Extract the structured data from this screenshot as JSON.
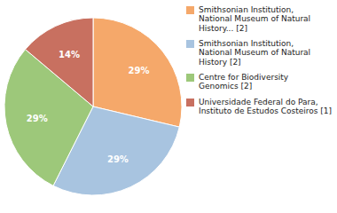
{
  "chart_data": {
    "type": "pie",
    "categories": [
      "Smithsonian Institution,\nNational Museum of Natural\nHistory... [2]",
      "Smithsonian Institution,\nNational Museum of Natural\nHistory [2]",
      "Centre for Biodiversity\nGenomics [2]",
      "Universidade Federal do Para,\nInstituto de Estudos Costeiros [1]"
    ],
    "values": [
      29,
      29,
      29,
      14
    ],
    "value_labels": [
      "29%",
      "29%",
      "29%",
      "14%"
    ],
    "colors": [
      "#F5A86A",
      "#A8C4E0",
      "#9DC87A",
      "#C87060"
    ],
    "data_labels": true,
    "legend": "right"
  }
}
